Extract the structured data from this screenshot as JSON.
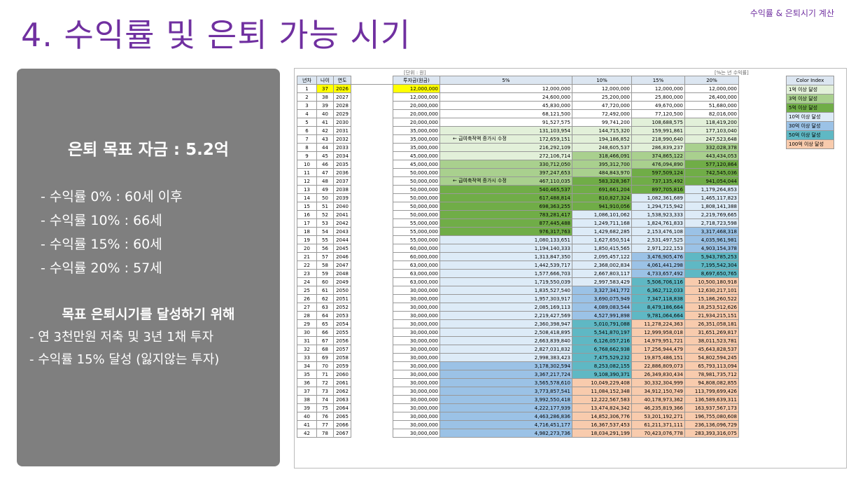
{
  "header": {
    "top_label": "수익률 & 은퇴시기 계산",
    "title": "4. 수익률 및 은퇴 가능 시기"
  },
  "summary": {
    "goal": "은퇴 목표 자금 : 5.2억",
    "rates": [
      "- 수익률   0% : 60세 이후",
      "- 수익률 10% : 66세",
      "- 수익률 15% : 60세",
      "- 수익률 20% : 57세"
    ],
    "strategy_title": "목표 은퇴시기를 달성하기 위해",
    "strategy": [
      "- 연 3천만원 저축 및 3년 1채 투자",
      "- 수익률 15% 달성 (잃지않는 투자)"
    ]
  },
  "sheet": {
    "unit_caption": "[단위 : 원]",
    "rate_caption": "[%는 년 수익률]",
    "columns": [
      "년차",
      "나이",
      "연도",
      "투자금(원금)",
      "5%",
      "10%",
      "15%",
      "20%"
    ],
    "notes": [
      "← 급여축적액 증가시 수정",
      "← 급여축적액 증가시 수정"
    ],
    "legend_title": "Color Index",
    "legend": [
      {
        "label": "1억 이상 달성",
        "color": "#e2f0d9"
      },
      {
        "label": "3억 이상 달성",
        "color": "#a9d08e"
      },
      {
        "label": "5억 이상 달성",
        "color": "#70ad47"
      },
      {
        "label": "10억 이상 달성",
        "color": "#ddebf7"
      },
      {
        "label": "30억 이상 달성",
        "color": "#9bc2e6"
      },
      {
        "label": "50억 이상 달성",
        "color": "#5fb8c4"
      },
      {
        "label": "100억 이상 달성",
        "color": "#f8cbad"
      }
    ],
    "rows": [
      [
        "1",
        "37",
        "2026",
        "12,000,000",
        "12,000,000",
        "12,000,000",
        "12,000,000",
        "12,000,000"
      ],
      [
        "2",
        "38",
        "2027",
        "12,000,000",
        "24,600,000",
        "25,200,000",
        "25,800,000",
        "26,400,000"
      ],
      [
        "3",
        "39",
        "2028",
        "20,000,000",
        "45,830,000",
        "47,720,000",
        "49,670,000",
        "51,680,000"
      ],
      [
        "4",
        "40",
        "2029",
        "20,000,000",
        "68,121,500",
        "72,492,000",
        "77,120,500",
        "82,016,000"
      ],
      [
        "5",
        "41",
        "2030",
        "20,000,000",
        "91,527,575",
        "99,741,200",
        "108,688,575",
        "118,419,200"
      ],
      [
        "6",
        "42",
        "2031",
        "35,000,000",
        "131,103,954",
        "144,715,320",
        "159,991,861",
        "177,103,040"
      ],
      [
        "7",
        "43",
        "2032",
        "35,000,000",
        "172,659,151",
        "194,186,852",
        "218,990,640",
        "247,523,648"
      ],
      [
        "8",
        "44",
        "2033",
        "35,000,000",
        "216,292,109",
        "248,605,537",
        "286,839,237",
        "332,028,378"
      ],
      [
        "9",
        "45",
        "2034",
        "45,000,000",
        "272,106,714",
        "318,466,091",
        "374,865,122",
        "443,434,053"
      ],
      [
        "10",
        "46",
        "2035",
        "45,000,000",
        "330,712,050",
        "395,312,700",
        "476,094,890",
        "577,120,864"
      ],
      [
        "11",
        "47",
        "2036",
        "50,000,000",
        "397,247,653",
        "484,843,970",
        "597,509,124",
        "742,545,036"
      ],
      [
        "12",
        "48",
        "2037",
        "50,000,000",
        "467,110,035",
        "583,328,367",
        "737,135,492",
        "941,054,044"
      ],
      [
        "13",
        "49",
        "2038",
        "50,000,000",
        "540,465,537",
        "691,661,204",
        "897,705,816",
        "1,179,264,853"
      ],
      [
        "14",
        "50",
        "2039",
        "50,000,000",
        "617,488,814",
        "810,827,324",
        "1,082,361,689",
        "1,465,117,823"
      ],
      [
        "15",
        "51",
        "2040",
        "50,000,000",
        "698,363,255",
        "941,910,056",
        "1,294,715,942",
        "1,808,141,388"
      ],
      [
        "16",
        "52",
        "2041",
        "50,000,000",
        "783,281,417",
        "1,086,101,062",
        "1,538,923,333",
        "2,219,769,665"
      ],
      [
        "17",
        "53",
        "2042",
        "55,000,000",
        "877,445,488",
        "1,249,711,168",
        "1,824,761,833",
        "2,718,723,598"
      ],
      [
        "18",
        "54",
        "2043",
        "55,000,000",
        "976,317,763",
        "1,429,682,285",
        "2,153,476,108",
        "3,317,468,318"
      ],
      [
        "19",
        "55",
        "2044",
        "55,000,000",
        "1,080,133,651",
        "1,627,650,514",
        "2,531,497,525",
        "4,035,961,981"
      ],
      [
        "20",
        "56",
        "2045",
        "60,000,000",
        "1,194,140,333",
        "1,850,415,565",
        "2,971,222,153",
        "4,903,154,378"
      ],
      [
        "21",
        "57",
        "2046",
        "60,000,000",
        "1,313,847,350",
        "2,095,457,122",
        "3,476,905,476",
        "5,943,785,253"
      ],
      [
        "22",
        "58",
        "2047",
        "63,000,000",
        "1,442,539,717",
        "2,368,002,834",
        "4,061,441,298",
        "7,195,542,304"
      ],
      [
        "23",
        "59",
        "2048",
        "63,000,000",
        "1,577,666,703",
        "2,667,803,117",
        "4,733,657,492",
        "8,697,650,765"
      ],
      [
        "24",
        "60",
        "2049",
        "63,000,000",
        "1,719,550,039",
        "2,997,583,429",
        "5,506,706,116",
        "10,500,180,918"
      ],
      [
        "25",
        "61",
        "2050",
        "30,000,000",
        "1,835,527,540",
        "3,327,341,772",
        "6,362,712,033",
        "12,630,217,101"
      ],
      [
        "26",
        "62",
        "2051",
        "30,000,000",
        "1,957,303,917",
        "3,690,075,949",
        "7,347,118,838",
        "15,186,260,522"
      ],
      [
        "27",
        "63",
        "2052",
        "30,000,000",
        "2,085,169,113",
        "4,089,083,544",
        "8,479,186,664",
        "18,253,512,626"
      ],
      [
        "28",
        "64",
        "2053",
        "30,000,000",
        "2,219,427,569",
        "4,527,991,898",
        "9,781,064,664",
        "21,934,215,151"
      ],
      [
        "29",
        "65",
        "2054",
        "30,000,000",
        "2,360,398,947",
        "5,010,791,088",
        "11,278,224,363",
        "26,351,058,181"
      ],
      [
        "30",
        "66",
        "2055",
        "30,000,000",
        "2,508,418,895",
        "5,541,870,197",
        "12,999,958,018",
        "31,651,269,817"
      ],
      [
        "31",
        "67",
        "2056",
        "30,000,000",
        "2,663,839,840",
        "6,126,057,216",
        "14,979,951,721",
        "38,011,523,781"
      ],
      [
        "32",
        "68",
        "2057",
        "30,000,000",
        "2,827,031,832",
        "6,768,662,938",
        "17,256,944,479",
        "45,643,828,537"
      ],
      [
        "33",
        "69",
        "2058",
        "30,000,000",
        "2,998,383,423",
        "7,475,529,232",
        "19,875,486,151",
        "54,802,594,245"
      ],
      [
        "34",
        "70",
        "2059",
        "30,000,000",
        "3,178,302,594",
        "8,253,082,155",
        "22,886,809,073",
        "65,793,113,094"
      ],
      [
        "35",
        "71",
        "2060",
        "30,000,000",
        "3,367,217,724",
        "9,108,390,371",
        "26,349,830,434",
        "78,981,735,712"
      ],
      [
        "36",
        "72",
        "2061",
        "30,000,000",
        "3,565,578,610",
        "10,049,229,408",
        "30,332,304,999",
        "94,808,082,855"
      ],
      [
        "37",
        "73",
        "2062",
        "30,000,000",
        "3,773,857,541",
        "11,084,152,348",
        "34,912,150,749",
        "113,799,699,426"
      ],
      [
        "38",
        "74",
        "2063",
        "30,000,000",
        "3,992,550,418",
        "12,222,567,583",
        "40,178,973,362",
        "136,589,639,311"
      ],
      [
        "39",
        "75",
        "2064",
        "30,000,000",
        "4,222,177,939",
        "13,474,824,342",
        "46,235,819,366",
        "163,937,567,173"
      ],
      [
        "40",
        "76",
        "2065",
        "30,000,000",
        "4,463,286,836",
        "14,852,306,776",
        "53,201,192,271",
        "196,755,080,608"
      ],
      [
        "41",
        "77",
        "2066",
        "30,000,000",
        "4,716,451,177",
        "16,367,537,453",
        "61,211,371,111",
        "236,136,096,729"
      ],
      [
        "42",
        "78",
        "2067",
        "30,000,000",
        "4,982,273,736",
        "18,034,291,199",
        "70,423,076,778",
        "283,393,316,075"
      ]
    ]
  }
}
